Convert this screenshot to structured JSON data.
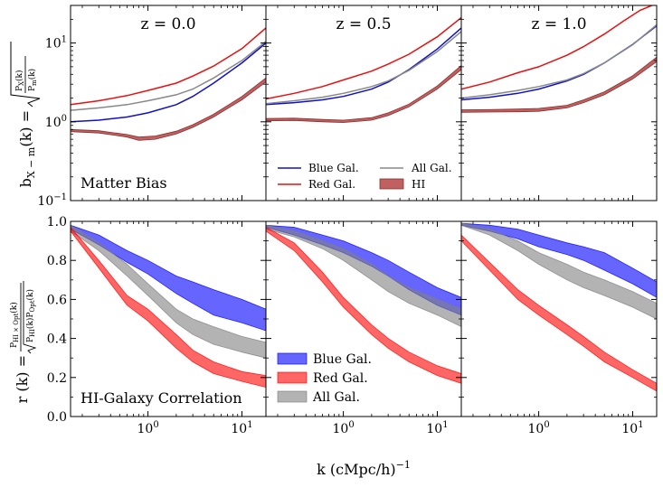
{
  "chart_data": [
    {
      "type": "line",
      "row": "bias",
      "xscale": "log",
      "yscale": "log",
      "xlim": [
        0.15,
        18
      ],
      "ylim": [
        0.1,
        30
      ],
      "y_ticks": [
        {
          "v": 0.1,
          "label": "10"
        },
        {
          "v": 1,
          "label": "10"
        },
        {
          "v": 10,
          "label": "10"
        }
      ],
      "y_tick_exps": [
        "−1",
        "0",
        "1"
      ],
      "annotation": "Matter Bias",
      "panels": [
        {
          "title": "z = 0.0",
          "series": [
            {
              "name": "Blue Gal.",
              "color": "#1010cc",
              "kind": "line",
              "x": [
                0.15,
                0.3,
                0.6,
                1.0,
                2.0,
                3.0,
                5.0,
                10.0,
                18.0
              ],
              "y": [
                1.0,
                1.05,
                1.15,
                1.3,
                1.65,
                2.1,
                3.1,
                5.6,
                10.0
              ]
            },
            {
              "name": "Red Gal.",
              "color": "#e81010",
              "kind": "line",
              "x": [
                0.15,
                0.3,
                0.6,
                1.0,
                2.0,
                3.0,
                5.0,
                10.0,
                18.0
              ],
              "y": [
                1.65,
                1.85,
                2.15,
                2.5,
                3.1,
                3.8,
                5.1,
                8.5,
                15.5
              ]
            },
            {
              "name": "All Gal.",
              "color": "#888888",
              "kind": "line",
              "x": [
                0.15,
                0.3,
                0.6,
                1.0,
                2.0,
                3.0,
                5.0,
                10.0,
                18.0
              ],
              "y": [
                1.4,
                1.5,
                1.65,
                1.85,
                2.2,
                2.6,
                3.6,
                6.0,
                10.5
              ]
            },
            {
              "name": "HI",
              "color": "#b85050",
              "kind": "band",
              "x": [
                0.15,
                0.3,
                0.6,
                0.8,
                1.2,
                2.0,
                3.0,
                5.0,
                10.0,
                18.0
              ],
              "lo": [
                0.75,
                0.72,
                0.64,
                0.58,
                0.6,
                0.7,
                0.85,
                1.15,
                1.9,
                3.2
              ],
              "hi": [
                0.8,
                0.77,
                0.69,
                0.64,
                0.66,
                0.76,
                0.92,
                1.25,
                2.1,
                3.6
              ]
            }
          ]
        },
        {
          "title": "z = 0.5",
          "series": [
            {
              "name": "Blue Gal.",
              "color": "#1010cc",
              "kind": "line",
              "x": [
                0.15,
                0.3,
                0.6,
                1.0,
                2.0,
                3.0,
                5.0,
                10.0,
                18.0
              ],
              "y": [
                1.65,
                1.75,
                1.9,
                2.1,
                2.6,
                3.2,
                4.6,
                8.4,
                15.5
              ]
            },
            {
              "name": "Red Gal.",
              "color": "#e81010",
              "kind": "line",
              "x": [
                0.15,
                0.3,
                0.6,
                1.0,
                2.0,
                3.0,
                5.0,
                10.0,
                18.0
              ],
              "y": [
                1.95,
                2.3,
                2.8,
                3.4,
                4.4,
                5.4,
                7.2,
                12.0,
                21.0
              ]
            },
            {
              "name": "All Gal.",
              "color": "#888888",
              "kind": "line",
              "x": [
                0.15,
                0.3,
                0.6,
                1.0,
                2.0,
                3.0,
                5.0,
                10.0,
                18.0
              ],
              "y": [
                1.7,
                1.85,
                2.05,
                2.3,
                2.8,
                3.3,
                4.5,
                7.8,
                14.0
              ]
            },
            {
              "name": "HI",
              "color": "#b85050",
              "kind": "band",
              "x": [
                0.15,
                0.3,
                0.6,
                1.0,
                2.0,
                3.0,
                5.0,
                10.0,
                18.0
              ],
              "lo": [
                1.03,
                1.04,
                1.0,
                0.98,
                1.05,
                1.2,
                1.55,
                2.6,
                4.6
              ],
              "hi": [
                1.1,
                1.11,
                1.07,
                1.05,
                1.13,
                1.3,
                1.68,
                2.85,
                5.2
              ]
            }
          ]
        },
        {
          "title": "z = 1.0",
          "series": [
            {
              "name": "Blue Gal.",
              "color": "#1010cc",
              "kind": "line",
              "x": [
                0.15,
                0.3,
                0.6,
                1.0,
                2.0,
                3.0,
                5.0,
                10.0,
                18.0
              ],
              "y": [
                1.9,
                2.05,
                2.3,
                2.6,
                3.3,
                4.0,
                5.6,
                9.6,
                16.5
              ]
            },
            {
              "name": "Red Gal.",
              "color": "#e81010",
              "kind": "line",
              "x": [
                0.15,
                0.3,
                0.6,
                1.0,
                2.0,
                3.0,
                5.0,
                8.0,
                12.0,
                16.0
              ],
              "y": [
                2.6,
                3.2,
                4.2,
                5.0,
                7.0,
                9.0,
                13.0,
                19.0,
                26.0,
                30.0
              ]
            },
            {
              "name": "All Gal.",
              "color": "#888888",
              "kind": "line",
              "x": [
                0.15,
                0.3,
                0.6,
                1.0,
                2.0,
                3.0,
                5.0,
                10.0,
                18.0
              ],
              "y": [
                2.0,
                2.2,
                2.5,
                2.8,
                3.4,
                4.1,
                5.6,
                9.5,
                17.0
              ]
            },
            {
              "name": "HI",
              "color": "#b85050",
              "kind": "band",
              "x": [
                0.15,
                0.3,
                0.6,
                1.0,
                2.0,
                3.0,
                5.0,
                10.0,
                18.0
              ],
              "lo": [
                1.32,
                1.33,
                1.34,
                1.36,
                1.5,
                1.75,
                2.2,
                3.5,
                5.8
              ],
              "hi": [
                1.42,
                1.43,
                1.45,
                1.48,
                1.62,
                1.9,
                2.4,
                3.85,
                6.6
              ]
            }
          ]
        }
      ],
      "legend": {
        "placement": "lower panel z=0.5",
        "entries": [
          {
            "name": "Blue Gal.",
            "color": "#1010cc",
            "kind": "line"
          },
          {
            "name": "All Gal.",
            "color": "#888888",
            "kind": "line"
          },
          {
            "name": "Red Gal.",
            "color": "#e81010",
            "kind": "line"
          },
          {
            "name": "HI",
            "color": "#b85050",
            "kind": "band"
          }
        ]
      }
    },
    {
      "type": "area",
      "row": "correlation",
      "xscale": "log",
      "yscale": "linear",
      "xlim": [
        0.15,
        18
      ],
      "ylim": [
        0.0,
        1.0
      ],
      "y_ticks": [
        0.0,
        0.2,
        0.4,
        0.6,
        0.8,
        1.0
      ],
      "y_tick_labels": [
        "0.0",
        "0.2",
        "0.4",
        "0.6",
        "0.8",
        "1.0"
      ],
      "x_ticks": [
        1,
        10
      ],
      "x_tick_base": "10",
      "x_tick_exps": [
        "0",
        "1"
      ],
      "annotation": "HI-Galaxy Correlation",
      "panels": [
        {
          "series": [
            {
              "name": "Blue Gal.",
              "color": "#0000ff",
              "alpha": 0.6,
              "x": [
                0.15,
                0.3,
                0.6,
                1.0,
                2.0,
                3.0,
                5.0,
                10.0,
                18.0
              ],
              "lo": [
                0.96,
                0.88,
                0.79,
                0.73,
                0.63,
                0.58,
                0.52,
                0.48,
                0.44
              ],
              "hi": [
                0.98,
                0.93,
                0.85,
                0.8,
                0.72,
                0.69,
                0.65,
                0.6,
                0.55
              ]
            },
            {
              "name": "All Gal.",
              "color": "#808080",
              "alpha": 0.6,
              "x": [
                0.15,
                0.3,
                0.6,
                1.0,
                2.0,
                3.0,
                5.0,
                10.0,
                18.0
              ],
              "lo": [
                0.95,
                0.85,
                0.72,
                0.62,
                0.48,
                0.42,
                0.37,
                0.33,
                0.3
              ],
              "hi": [
                0.98,
                0.89,
                0.78,
                0.68,
                0.55,
                0.5,
                0.46,
                0.41,
                0.38
              ]
            },
            {
              "name": "Red Gal.",
              "color": "#ff0000",
              "alpha": 0.6,
              "x": [
                0.15,
                0.3,
                0.6,
                1.0,
                2.0,
                3.0,
                5.0,
                10.0,
                18.0
              ],
              "lo": [
                0.95,
                0.76,
                0.57,
                0.49,
                0.35,
                0.28,
                0.22,
                0.18,
                0.15
              ],
              "hi": [
                0.97,
                0.8,
                0.62,
                0.55,
                0.42,
                0.34,
                0.28,
                0.23,
                0.21
              ]
            }
          ]
        },
        {
          "series": [
            {
              "name": "Blue Gal.",
              "color": "#0000ff",
              "alpha": 0.6,
              "x": [
                0.15,
                0.3,
                0.6,
                1.0,
                2.0,
                3.0,
                5.0,
                10.0,
                18.0
              ],
              "lo": [
                0.97,
                0.93,
                0.88,
                0.84,
                0.77,
                0.72,
                0.65,
                0.57,
                0.52
              ],
              "hi": [
                0.98,
                0.97,
                0.93,
                0.9,
                0.84,
                0.8,
                0.74,
                0.66,
                0.61
              ]
            },
            {
              "name": "All Gal.",
              "color": "#808080",
              "alpha": 0.6,
              "x": [
                0.15,
                0.3,
                0.6,
                1.0,
                2.0,
                3.0,
                5.0,
                10.0,
                18.0
              ],
              "lo": [
                0.96,
                0.92,
                0.86,
                0.8,
                0.7,
                0.64,
                0.58,
                0.52,
                0.46
              ],
              "hi": [
                0.98,
                0.95,
                0.9,
                0.86,
                0.78,
                0.72,
                0.66,
                0.6,
                0.55
              ]
            },
            {
              "name": "Red Gal.",
              "color": "#ff0000",
              "alpha": 0.6,
              "x": [
                0.15,
                0.3,
                0.6,
                1.0,
                2.0,
                3.0,
                5.0,
                10.0,
                18.0
              ],
              "lo": [
                0.95,
                0.85,
                0.69,
                0.56,
                0.42,
                0.35,
                0.28,
                0.21,
                0.17
              ],
              "hi": [
                0.97,
                0.89,
                0.74,
                0.61,
                0.47,
                0.4,
                0.33,
                0.26,
                0.22
              ]
            }
          ]
        },
        {
          "series": [
            {
              "name": "Blue Gal.",
              "color": "#0000ff",
              "alpha": 0.6,
              "x": [
                0.15,
                0.3,
                0.6,
                1.0,
                2.0,
                3.0,
                5.0,
                10.0,
                18.0
              ],
              "lo": [
                0.98,
                0.95,
                0.91,
                0.87,
                0.83,
                0.8,
                0.75,
                0.68,
                0.61
              ],
              "hi": [
                0.99,
                0.98,
                0.96,
                0.93,
                0.89,
                0.87,
                0.84,
                0.76,
                0.69
              ]
            },
            {
              "name": "All Gal.",
              "color": "#808080",
              "alpha": 0.6,
              "x": [
                0.15,
                0.3,
                0.6,
                1.0,
                2.0,
                3.0,
                5.0,
                10.0,
                18.0
              ],
              "lo": [
                0.98,
                0.93,
                0.85,
                0.78,
                0.7,
                0.66,
                0.62,
                0.56,
                0.5
              ],
              "hi": [
                0.99,
                0.96,
                0.9,
                0.84,
                0.78,
                0.74,
                0.7,
                0.64,
                0.58
              ]
            },
            {
              "name": "Red Gal.",
              "color": "#ff0000",
              "alpha": 0.6,
              "x": [
                0.15,
                0.3,
                0.6,
                1.0,
                2.0,
                3.0,
                5.0,
                10.0,
                18.0
              ],
              "lo": [
                0.9,
                0.75,
                0.6,
                0.52,
                0.42,
                0.36,
                0.28,
                0.2,
                0.13
              ],
              "hi": [
                0.93,
                0.79,
                0.65,
                0.57,
                0.47,
                0.41,
                0.33,
                0.24,
                0.17
              ]
            }
          ]
        }
      ],
      "legend": {
        "placement": "lower-left of z=0.5 panel",
        "entries": [
          {
            "name": "Blue Gal.",
            "color": "#0000ff"
          },
          {
            "name": "Red Gal.",
            "color": "#ff0000"
          },
          {
            "name": "All Gal.",
            "color": "#808080"
          }
        ]
      }
    }
  ],
  "xlabel": "k (cMpc/h)",
  "xlabel_exp": "−1",
  "ylabel_top": "b",
  "ylabel_top_sub": "X − m",
  "ylabel_top_rest": "(k) =",
  "ylabel_bottom": "r (k) ="
}
